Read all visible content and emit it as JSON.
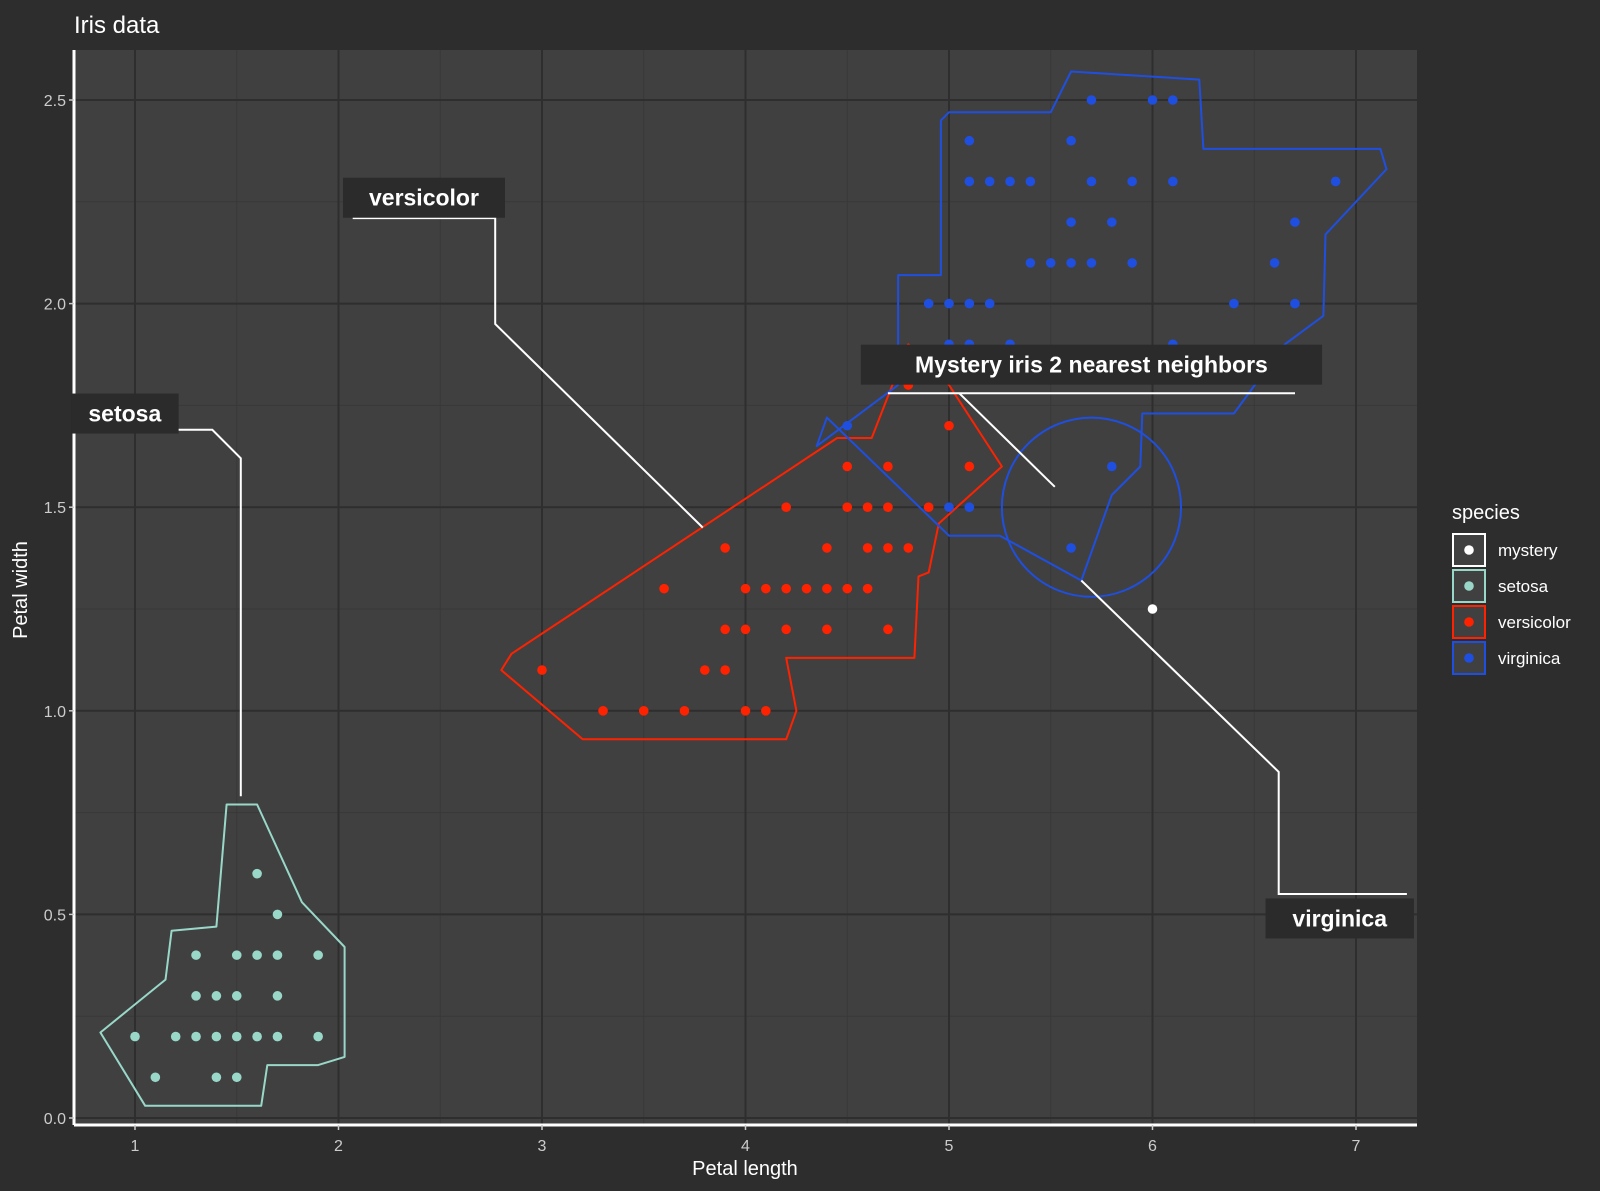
{
  "chart_data": {
    "type": "scatter",
    "title": "Iris data",
    "xlabel": "Petal length",
    "ylabel": "Petal width",
    "xlim": [
      0.7,
      7.3
    ],
    "ylim": [
      0.0,
      2.6
    ],
    "x_ticks": [
      1,
      2,
      3,
      4,
      5,
      6,
      7
    ],
    "y_ticks": [
      0.0,
      0.5,
      1.0,
      1.5,
      2.0,
      2.5
    ],
    "x_tick_labels": [
      "1",
      "2",
      "3",
      "4",
      "5",
      "6",
      "7"
    ],
    "y_tick_labels": [
      "0.0",
      "0.5",
      "1.0",
      "1.5",
      "2.0",
      "2.5"
    ],
    "grid": true,
    "legend": {
      "title": "species",
      "position": "right",
      "entries": [
        "mystery",
        "setosa",
        "versicolor",
        "virginica"
      ]
    },
    "colors": {
      "background": "#2d2d2d",
      "panel": "#404040",
      "grid_major": "#2e2e2e",
      "grid_minor": "#383838",
      "mystery": "#ffffff",
      "setosa": "#99d8c9",
      "versicolor": "#ff2200",
      "virginica": "#1f4fe0",
      "label_box": "#2b2b2b"
    },
    "series": [
      {
        "name": "mystery",
        "points": [
          [
            6.0,
            1.25
          ]
        ]
      },
      {
        "name": "setosa",
        "points": [
          [
            1.6,
            0.6
          ],
          [
            1.7,
            0.5
          ],
          [
            1.3,
            0.4
          ],
          [
            1.5,
            0.4
          ],
          [
            1.6,
            0.4
          ],
          [
            1.7,
            0.4
          ],
          [
            1.9,
            0.4
          ],
          [
            1.3,
            0.3
          ],
          [
            1.4,
            0.3
          ],
          [
            1.5,
            0.3
          ],
          [
            1.7,
            0.3
          ],
          [
            1.0,
            0.2
          ],
          [
            1.2,
            0.2
          ],
          [
            1.3,
            0.2
          ],
          [
            1.4,
            0.2
          ],
          [
            1.5,
            0.2
          ],
          [
            1.6,
            0.2
          ],
          [
            1.7,
            0.2
          ],
          [
            1.9,
            0.2
          ],
          [
            1.1,
            0.1
          ],
          [
            1.4,
            0.1
          ],
          [
            1.5,
            0.1
          ]
        ]
      },
      {
        "name": "versicolor",
        "points": [
          [
            5.0,
            1.7
          ],
          [
            4.5,
            1.6
          ],
          [
            4.7,
            1.6
          ],
          [
            5.1,
            1.6
          ],
          [
            4.2,
            1.5
          ],
          [
            4.5,
            1.5
          ],
          [
            4.6,
            1.5
          ],
          [
            4.7,
            1.5
          ],
          [
            4.9,
            1.5
          ],
          [
            3.9,
            1.4
          ],
          [
            4.4,
            1.4
          ],
          [
            4.6,
            1.4
          ],
          [
            4.7,
            1.4
          ],
          [
            4.8,
            1.4
          ],
          [
            3.6,
            1.3
          ],
          [
            4.0,
            1.3
          ],
          [
            4.1,
            1.3
          ],
          [
            4.2,
            1.3
          ],
          [
            4.3,
            1.3
          ],
          [
            4.4,
            1.3
          ],
          [
            4.5,
            1.3
          ],
          [
            4.6,
            1.3
          ],
          [
            3.9,
            1.2
          ],
          [
            4.0,
            1.2
          ],
          [
            4.2,
            1.2
          ],
          [
            4.4,
            1.2
          ],
          [
            4.7,
            1.2
          ],
          [
            3.0,
            1.1
          ],
          [
            3.8,
            1.1
          ],
          [
            3.9,
            1.1
          ],
          [
            3.3,
            1.0
          ],
          [
            3.5,
            1.0
          ],
          [
            3.7,
            1.0
          ],
          [
            4.0,
            1.0
          ],
          [
            4.1,
            1.0
          ],
          [
            4.8,
            1.8
          ]
        ]
      },
      {
        "name": "virginica",
        "points": [
          [
            5.7,
            2.5
          ],
          [
            6.0,
            2.5
          ],
          [
            6.1,
            2.5
          ],
          [
            5.1,
            2.4
          ],
          [
            5.6,
            2.4
          ],
          [
            5.1,
            2.3
          ],
          [
            5.2,
            2.3
          ],
          [
            5.3,
            2.3
          ],
          [
            5.4,
            2.3
          ],
          [
            5.7,
            2.3
          ],
          [
            5.9,
            2.3
          ],
          [
            6.1,
            2.3
          ],
          [
            6.9,
            2.3
          ],
          [
            5.6,
            2.2
          ],
          [
            5.8,
            2.2
          ],
          [
            6.7,
            2.2
          ],
          [
            5.4,
            2.1
          ],
          [
            5.5,
            2.1
          ],
          [
            5.6,
            2.1
          ],
          [
            5.7,
            2.1
          ],
          [
            5.9,
            2.1
          ],
          [
            6.6,
            2.1
          ],
          [
            4.9,
            2.0
          ],
          [
            5.0,
            2.0
          ],
          [
            5.1,
            2.0
          ],
          [
            5.2,
            2.0
          ],
          [
            6.4,
            2.0
          ],
          [
            6.7,
            2.0
          ],
          [
            5.0,
            1.9
          ],
          [
            5.1,
            1.9
          ],
          [
            5.3,
            1.9
          ],
          [
            6.1,
            1.9
          ],
          [
            4.5,
            1.7
          ],
          [
            5.8,
            1.6
          ],
          [
            5.0,
            1.5
          ],
          [
            5.1,
            1.5
          ],
          [
            5.6,
            1.4
          ]
        ]
      }
    ],
    "hulls": [
      {
        "name": "setosa",
        "points": [
          [
            1.4,
            0.47
          ],
          [
            1.45,
            0.77
          ],
          [
            1.6,
            0.77
          ],
          [
            1.82,
            0.53
          ],
          [
            2.03,
            0.42
          ],
          [
            2.03,
            0.15
          ],
          [
            1.9,
            0.13
          ],
          [
            1.65,
            0.13
          ],
          [
            1.62,
            0.03
          ],
          [
            1.05,
            0.03
          ],
          [
            0.83,
            0.21
          ],
          [
            1.15,
            0.34
          ],
          [
            1.18,
            0.46
          ]
        ]
      },
      {
        "name": "versicolor",
        "points": [
          [
            2.8,
            1.1
          ],
          [
            3.2,
            0.93
          ],
          [
            4.2,
            0.93
          ],
          [
            4.25,
            1.0
          ],
          [
            4.2,
            1.13
          ],
          [
            4.83,
            1.13
          ],
          [
            4.85,
            1.33
          ],
          [
            4.9,
            1.34
          ],
          [
            4.95,
            1.46
          ],
          [
            5.26,
            1.6
          ],
          [
            5.0,
            1.8
          ],
          [
            4.8,
            1.9
          ],
          [
            4.62,
            1.67
          ],
          [
            4.45,
            1.67
          ],
          [
            2.85,
            1.14
          ]
        ]
      },
      {
        "name": "virginica",
        "points": [
          [
            4.75,
            1.8
          ],
          [
            4.75,
            2.07
          ],
          [
            4.96,
            2.07
          ],
          [
            4.96,
            2.45
          ],
          [
            5.0,
            2.47
          ],
          [
            5.5,
            2.47
          ],
          [
            5.6,
            2.57
          ],
          [
            6.23,
            2.55
          ],
          [
            6.25,
            2.38
          ],
          [
            7.12,
            2.38
          ],
          [
            7.15,
            2.33
          ],
          [
            6.85,
            2.17
          ],
          [
            6.84,
            1.97
          ],
          [
            6.65,
            1.9
          ],
          [
            6.4,
            1.73
          ],
          [
            5.95,
            1.73
          ],
          [
            5.94,
            1.6
          ],
          [
            5.8,
            1.53
          ],
          [
            5.65,
            1.32
          ],
          [
            5.25,
            1.43
          ],
          [
            5.0,
            1.43
          ],
          [
            4.4,
            1.72
          ],
          [
            4.35,
            1.65
          ]
        ]
      }
    ],
    "mystery_neighbor_circle": {
      "cx": 5.7,
      "cy": 1.5,
      "r": 0.22
    },
    "annotations": [
      {
        "label": "setosa",
        "anchor": [
          0.95,
          1.73
        ],
        "path": [
          [
            0.88,
            1.69
          ],
          [
            1.38,
            1.69
          ],
          [
            1.52,
            1.62
          ],
          [
            1.52,
            0.79
          ]
        ]
      },
      {
        "label": "versicolor",
        "anchor": [
          2.42,
          2.26
        ],
        "path": [
          [
            2.07,
            2.21
          ],
          [
            2.77,
            2.21
          ],
          [
            2.77,
            1.95
          ],
          [
            3.79,
            1.45
          ]
        ]
      },
      {
        "label": "Mystery iris 2 nearest neighbors",
        "anchor": [
          5.7,
          1.85
        ],
        "path": [
          [
            4.7,
            1.78
          ],
          [
            6.7,
            1.78
          ]
        ]
      },
      {
        "label": "virginica",
        "anchor": [
          6.92,
          0.49
        ],
        "path": [
          [
            5.65,
            1.32
          ],
          [
            6.62,
            0.85
          ],
          [
            6.62,
            0.55
          ],
          [
            7.25,
            0.55
          ]
        ]
      }
    ],
    "mystery_link_path": [
      [
        5.05,
        1.78
      ],
      [
        5.52,
        1.55
      ]
    ]
  }
}
